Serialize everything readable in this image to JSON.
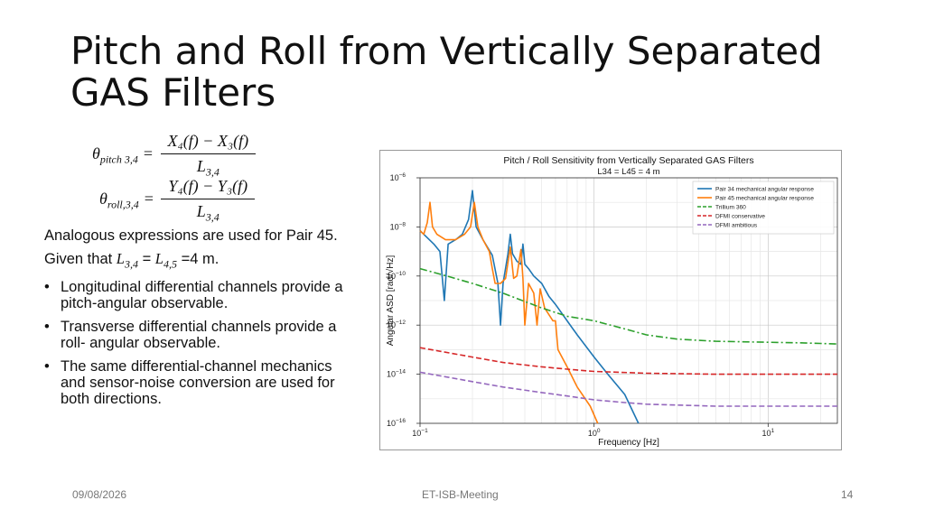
{
  "slide": {
    "title": "Pitch and Roll from Vertically Separated GAS Filters",
    "formulas": {
      "pitch": {
        "lhs_symbol": "θ",
        "lhs_sub": "pitch 3,4",
        "num": "X₄(f) − X₃(f)",
        "den_symbol": "L",
        "den_sub": "3,4"
      },
      "roll": {
        "lhs_symbol": "θ",
        "lhs_sub": "roll,3,4",
        "num": "Y₄(f) − Y₃(f)",
        "den_symbol": "L",
        "den_sub": "3,4"
      }
    },
    "body": {
      "para1": "Analogous expressions are used for Pair 45.",
      "para2_prefix": "Given that ",
      "para2_l34_sym": "L",
      "para2_l34_sub": "3,4",
      "para2_mid": " = ",
      "para2_l45_sym": "L",
      "para2_l45_sub": "4,5",
      "para2_suffix": " =4 m.",
      "bullets": [
        "Longitudinal differential channels provide a pitch-­angular observable.",
        "Transverse differential channels provide a roll- angular observable.",
        "The same differential-channel mechanics and sensor-noise conversion are used for both directions."
      ]
    },
    "footer": {
      "date": "09/08/2026",
      "center": "ET-ISB-Meeting",
      "page": "14"
    }
  },
  "chart_data": {
    "type": "line",
    "title": "Pitch / Roll Sensitivity from Vertically Separated GAS Filters",
    "subtitle": "L34 = L45 = 4 m",
    "xlabel": "Frequency [Hz]",
    "ylabel": "Angular ASD [rad/√Hz]",
    "x_scale": "log",
    "y_scale": "log",
    "xlim": [
      0.1,
      25
    ],
    "ylim": [
      1e-16,
      1e-06
    ],
    "x_ticks": [
      {
        "value": 0.1,
        "base": "10",
        "exp": "−1"
      },
      {
        "value": 1,
        "base": "10",
        "exp": "0"
      },
      {
        "value": 10,
        "base": "10",
        "exp": "1"
      }
    ],
    "y_ticks": [
      {
        "value": 1e-06,
        "base": "10",
        "exp": "−6"
      },
      {
        "value": 1e-08,
        "base": "10",
        "exp": "−8"
      },
      {
        "value": 1e-10,
        "base": "10",
        "exp": "−10"
      },
      {
        "value": 1e-12,
        "base": "10",
        "exp": "−12"
      },
      {
        "value": 1e-14,
        "base": "10",
        "exp": "−14"
      },
      {
        "value": 1e-16,
        "base": "10",
        "exp": "−16"
      }
    ],
    "grid": true,
    "legend_position": "top-right",
    "series": [
      {
        "name": "Pair 34 mechanical angular response",
        "color": "#1f77b4",
        "dash": "solid",
        "points": [
          [
            0.1,
            7e-09
          ],
          [
            0.12,
            2e-09
          ],
          [
            0.13,
            1e-09
          ],
          [
            0.138,
            1e-11
          ],
          [
            0.145,
            2e-09
          ],
          [
            0.16,
            3e-09
          ],
          [
            0.175,
            5e-09
          ],
          [
            0.19,
            2e-08
          ],
          [
            0.2,
            3e-07
          ],
          [
            0.21,
            1e-08
          ],
          [
            0.23,
            3e-09
          ],
          [
            0.26,
            7e-10
          ],
          [
            0.28,
            5e-11
          ],
          [
            0.29,
            1e-12
          ],
          [
            0.3,
            5e-11
          ],
          [
            0.32,
            8e-10
          ],
          [
            0.33,
            5e-09
          ],
          [
            0.34,
            8e-10
          ],
          [
            0.36,
            4e-10
          ],
          [
            0.38,
            3e-10
          ],
          [
            0.39,
            2e-09
          ],
          [
            0.4,
            3e-10
          ],
          [
            0.42,
            2e-10
          ],
          [
            0.45,
            1e-10
          ],
          [
            0.5,
            5e-11
          ],
          [
            0.55,
            1.5e-11
          ],
          [
            0.6,
            7e-12
          ],
          [
            0.7,
            1.5e-12
          ],
          [
            0.8,
            4e-13
          ],
          [
            1,
            5e-14
          ],
          [
            1.2,
            1e-14
          ],
          [
            1.5,
            1.5e-15
          ],
          [
            1.8,
            1e-16
          ]
        ]
      },
      {
        "name": "Pair 45 mechanical angular response",
        "color": "#ff7f0e",
        "dash": "solid",
        "points": [
          [
            0.1,
            7e-09
          ],
          [
            0.105,
            5e-09
          ],
          [
            0.11,
            1.5e-08
          ],
          [
            0.114,
            1e-07
          ],
          [
            0.118,
            1e-08
          ],
          [
            0.125,
            5e-09
          ],
          [
            0.14,
            3e-09
          ],
          [
            0.16,
            3e-09
          ],
          [
            0.18,
            5e-09
          ],
          [
            0.195,
            1e-08
          ],
          [
            0.205,
            1e-07
          ],
          [
            0.215,
            1e-08
          ],
          [
            0.23,
            3e-09
          ],
          [
            0.25,
            1e-09
          ],
          [
            0.26,
            2e-10
          ],
          [
            0.27,
            5e-11
          ],
          [
            0.29,
            5e-11
          ],
          [
            0.31,
            8e-11
          ],
          [
            0.33,
            1.5e-09
          ],
          [
            0.345,
            8e-11
          ],
          [
            0.36,
            1e-10
          ],
          [
            0.38,
            1.2e-09
          ],
          [
            0.39,
            8e-11
          ],
          [
            0.4,
            1e-12
          ],
          [
            0.42,
            5e-11
          ],
          [
            0.45,
            2e-11
          ],
          [
            0.47,
            1e-12
          ],
          [
            0.49,
            3e-11
          ],
          [
            0.52,
            5e-12
          ],
          [
            0.58,
            1.5e-12
          ],
          [
            0.6,
            1.5e-12
          ],
          [
            0.62,
            1e-13
          ],
          [
            0.7,
            2e-14
          ],
          [
            0.8,
            3e-15
          ],
          [
            0.95,
            5e-16
          ],
          [
            1.05,
            1e-16
          ]
        ]
      },
      {
        "name": "Trillium 360",
        "color": "#2ca02c",
        "dash": "dashdot",
        "points": [
          [
            0.1,
            2e-10
          ],
          [
            0.15,
            9e-11
          ],
          [
            0.2,
            5e-11
          ],
          [
            0.3,
            2e-11
          ],
          [
            0.5,
            5e-12
          ],
          [
            0.7,
            2.3e-12
          ],
          [
            1,
            1.5e-12
          ],
          [
            1.5,
            7e-13
          ],
          [
            2,
            4e-13
          ],
          [
            3,
            2.7e-13
          ],
          [
            5,
            2.2e-13
          ],
          [
            10,
            2e-13
          ],
          [
            15,
            1.9e-13
          ],
          [
            20,
            1.8e-13
          ],
          [
            25,
            1.7e-13
          ]
        ]
      },
      {
        "name": "DFMI conservative",
        "color": "#d62728",
        "dash": "dashed",
        "points": [
          [
            0.1,
            1.2e-13
          ],
          [
            0.2,
            5e-14
          ],
          [
            0.3,
            3e-14
          ],
          [
            0.5,
            2e-14
          ],
          [
            0.7,
            1.6e-14
          ],
          [
            1,
            1.3e-14
          ],
          [
            2,
            1.1e-14
          ],
          [
            5,
            1e-14
          ],
          [
            10,
            1e-14
          ],
          [
            25,
            1e-14
          ]
        ]
      },
      {
        "name": "DFMI ambitious",
        "color": "#9467bd",
        "dash": "dashed",
        "points": [
          [
            0.1,
            1.2e-14
          ],
          [
            0.2,
            5e-15
          ],
          [
            0.3,
            3e-15
          ],
          [
            0.5,
            1.8e-15
          ],
          [
            0.7,
            1.3e-15
          ],
          [
            1,
            9e-16
          ],
          [
            1.5,
            7e-16
          ],
          [
            2,
            6e-16
          ],
          [
            5,
            5e-16
          ],
          [
            10,
            5e-16
          ],
          [
            25,
            5e-16
          ]
        ]
      }
    ]
  }
}
